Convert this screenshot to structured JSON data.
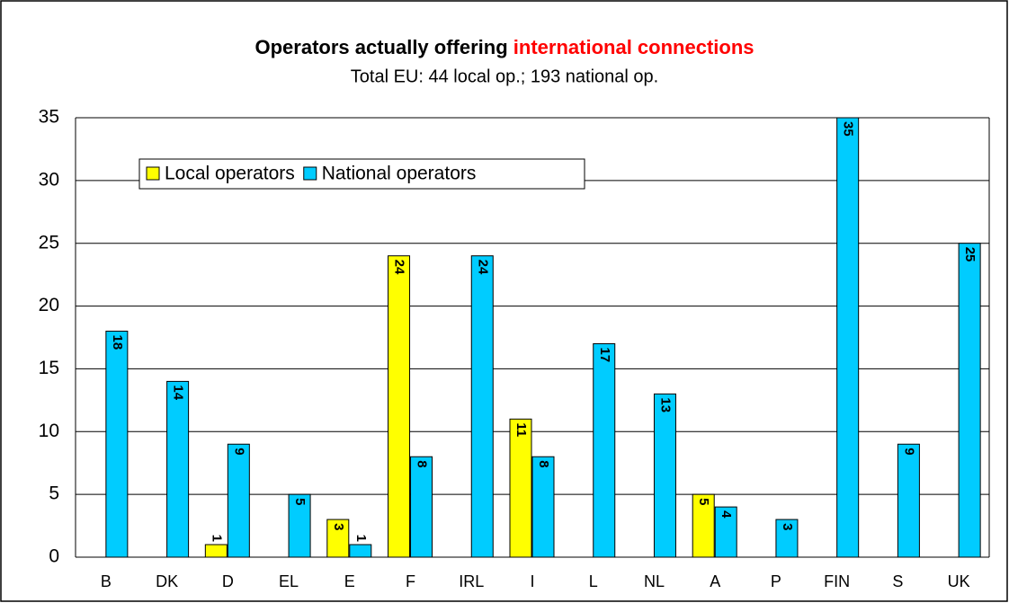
{
  "chart_data": {
    "type": "bar",
    "title": "Operators actually offering",
    "title_highlight": "international connections",
    "subtitle": "Total EU: 44 local op.; 193 national op.",
    "categories": [
      "B",
      "DK",
      "D",
      "EL",
      "E",
      "F",
      "IRL",
      "I",
      "L",
      "NL",
      "A",
      "P",
      "FIN",
      "S",
      "UK"
    ],
    "series": [
      {
        "name": "Local operators",
        "color": "#ffff00",
        "values": [
          null,
          null,
          1,
          null,
          3,
          24,
          null,
          11,
          null,
          null,
          5,
          null,
          null,
          null,
          null
        ]
      },
      {
        "name": "National operators",
        "color": "#00ccff",
        "values": [
          18,
          14,
          9,
          5,
          1,
          8,
          24,
          8,
          17,
          13,
          4,
          3,
          35,
          9,
          25
        ]
      }
    ],
    "ylim": [
      0,
      35
    ],
    "yticks": [
      0,
      5,
      10,
      15,
      20,
      25,
      30,
      35
    ],
    "grid": true,
    "legend": "top-left"
  }
}
